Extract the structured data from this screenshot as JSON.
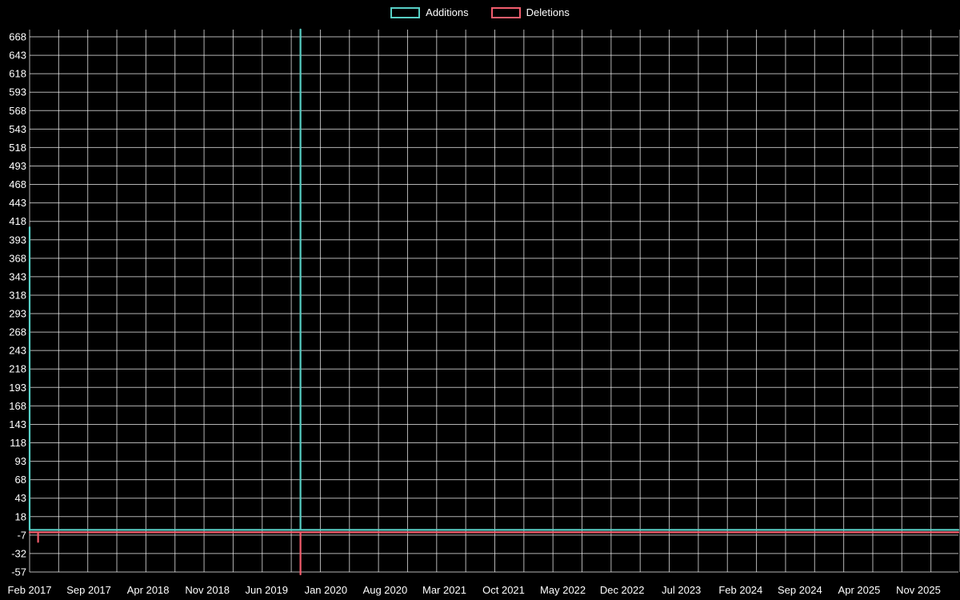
{
  "legend": {
    "items": [
      {
        "label": "Additions"
      },
      {
        "label": "Deletions"
      }
    ]
  },
  "chart_data": {
    "type": "line",
    "title": "",
    "background": "#000000",
    "grid_color": "rgba(255,255,255,0.7)",
    "x_axis": {
      "labels": [
        "Feb 2017",
        "Sep 2017",
        "Apr 2018",
        "Nov 2018",
        "Jun 2019",
        "Jan 2020",
        "Aug 2020",
        "Mar 2021",
        "Oct 2021",
        "May 2022",
        "Dec 2022",
        "Jul 2023",
        "Feb 2024",
        "Sep 2024",
        "Apr 2025",
        "Nov 2025"
      ],
      "months_between_labels": 7,
      "total_months": 105
    },
    "y_axis": {
      "max": 668,
      "min": -57,
      "step": 25
    },
    "series": [
      {
        "name": "Additions",
        "color": "#57cfc5",
        "baseline": 0,
        "spikes": [
          {
            "label": "Feb 2017",
            "month_index": 0,
            "value": 410
          },
          {
            "label": "Oct 2019",
            "month_index": 32,
            "value": 678
          }
        ]
      },
      {
        "name": "Deletions",
        "color": "#f35d6d",
        "baseline": 0,
        "spikes": [
          {
            "label": "Mar 2017",
            "month_index": 1,
            "value": -13
          },
          {
            "label": "Oct 2019",
            "month_index": 32,
            "value": -57
          }
        ]
      }
    ]
  }
}
